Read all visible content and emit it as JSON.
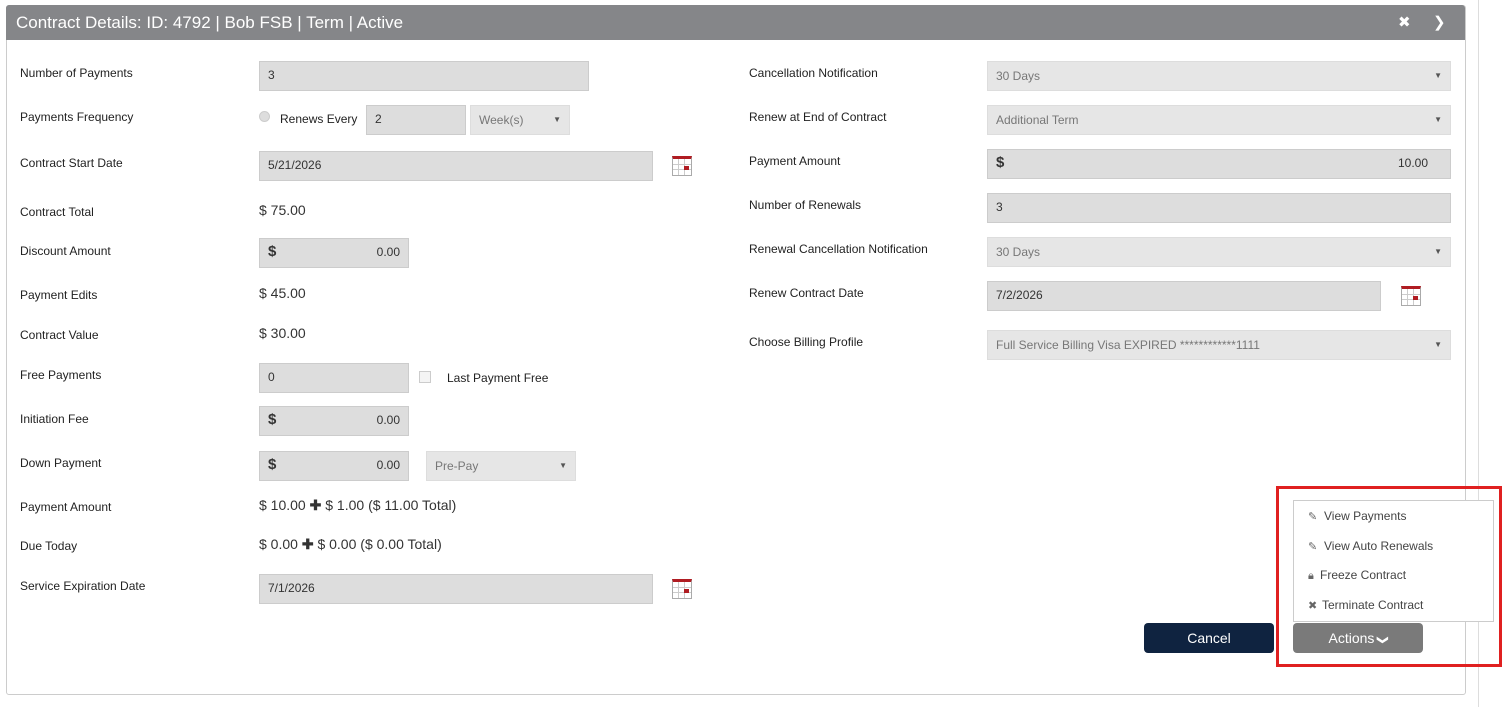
{
  "header": {
    "title": "Contract Details: ID: 4792 | Bob FSB | Term | Active",
    "close_icon": "close-icon",
    "collapse_icon": "chevron-down-icon"
  },
  "left": {
    "number_of_payments": {
      "label": "Number of Payments",
      "value": "3"
    },
    "payments_frequency": {
      "label": "Payments Frequency",
      "radio_label": "Renews Every",
      "value": "2",
      "unit": "Week(s)"
    },
    "contract_start_date": {
      "label": "Contract Start Date",
      "value": "5/21/2026"
    },
    "contract_total": {
      "label": "Contract Total",
      "value": "$ 75.00"
    },
    "discount_amount": {
      "label": "Discount Amount",
      "currency": "$",
      "value": "0.00"
    },
    "payment_edits": {
      "label": "Payment Edits",
      "value": "$ 45.00"
    },
    "contract_value": {
      "label": "Contract Value",
      "value": "$ 30.00"
    },
    "free_payments": {
      "label": "Free Payments",
      "value": "0",
      "checkbox_label": "Last Payment Free"
    },
    "initiation_fee": {
      "label": "Initiation Fee",
      "currency": "$",
      "value": "0.00"
    },
    "down_payment": {
      "label": "Down Payment",
      "currency": "$",
      "value": "0.00",
      "type": "Pre-Pay"
    },
    "payment_amount": {
      "label": "Payment Amount",
      "value": "$ 10.00",
      "plus": "$ 1.00",
      "total": "($ 11.00 Total)"
    },
    "due_today": {
      "label": "Due Today",
      "value": "$ 0.00",
      "plus": "$ 0.00",
      "total": "($ 0.00 Total)"
    },
    "service_expiration_date": {
      "label": "Service Expiration Date",
      "value": "7/1/2026"
    }
  },
  "right": {
    "cancellation_notification": {
      "label": "Cancellation Notification",
      "value": "30 Days"
    },
    "renew_at_end": {
      "label": "Renew at End of Contract",
      "value": "Additional Term"
    },
    "payment_amount": {
      "label": "Payment Amount",
      "currency": "$",
      "value": "10.00"
    },
    "number_of_renewals": {
      "label": "Number of Renewals",
      "value": "3"
    },
    "renewal_cancellation": {
      "label": "Renewal Cancellation Notification",
      "value": "30 Days"
    },
    "renew_contract_date": {
      "label": "Renew Contract Date",
      "value": "7/2/2026"
    },
    "billing_profile": {
      "label": "Choose Billing Profile",
      "value": "Full Service Billing Visa EXPIRED ************1111"
    }
  },
  "actions_menu": {
    "items": [
      {
        "label": "View Payments",
        "icon": "edit-icon"
      },
      {
        "label": "View Auto Renewals",
        "icon": "edit-icon"
      },
      {
        "label": "Freeze Contract",
        "icon": "lock-icon"
      },
      {
        "label": "Terminate Contract",
        "icon": "close-icon"
      }
    ]
  },
  "buttons": {
    "cancel": "Cancel",
    "actions": "Actions"
  },
  "colors": {
    "header": "#858689",
    "cancel": "#0f2340",
    "actions": "#7a7a7a",
    "highlight": "#e02020",
    "calendar": "#b01c22"
  }
}
